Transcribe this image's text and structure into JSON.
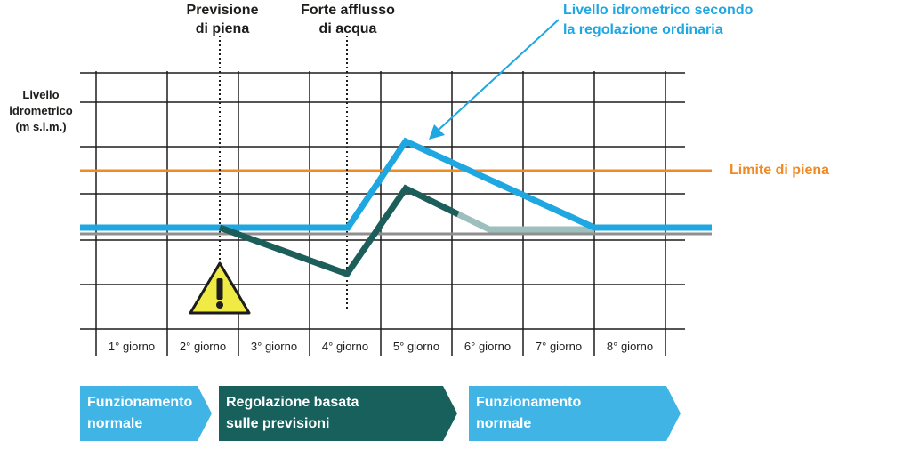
{
  "diagram": {
    "y_axis_label": "Livello\nidrometrico\n(m s.l.m.)",
    "annotations": {
      "flood_forecast": "Previsione\ndi piena",
      "strong_inflow": "Forte afflusso\ndi acqua"
    },
    "ordinary_level_label": "Livello idrometrico secondo\nla regolazione ordinaria",
    "flood_limit_label": "Limite di piena",
    "days": [
      "1° giorno",
      "2° giorno",
      "3° giorno",
      "4° giorno",
      "5° giorno",
      "6° giorno",
      "7° giorno",
      "8° giorno"
    ],
    "phases": [
      {
        "label": "Funzionamento\nnormale",
        "color": "#41b4e6"
      },
      {
        "label": "Regolazione basata\nsulle previsioni",
        "color": "#17605c"
      },
      {
        "label": "Funzionamento\nnormale",
        "color": "#41b4e6"
      }
    ],
    "colors": {
      "grid": "#1d1d1b",
      "ordinary_line": "#1ea7e1",
      "forecast_line": "#1b5e5a",
      "forecast_line_faded": "#9dbfbe",
      "flood_limit": "#f08a24",
      "warning_fill": "#f0ea45"
    },
    "warning_icon": "warning-triangle-icon"
  }
}
